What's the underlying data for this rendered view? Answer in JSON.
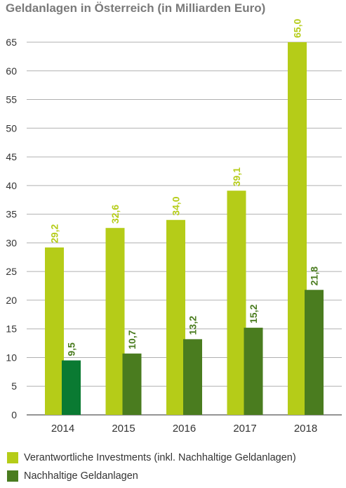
{
  "chart_data": {
    "type": "bar",
    "title": "Geldanlagen in Österreich (in Milliarden Euro)",
    "categories": [
      "2014",
      "2015",
      "2016",
      "2017",
      "2018"
    ],
    "series": [
      {
        "name": "Verantwortliche Investments (inkl. Nachhaltige Geldanlagen)",
        "values": [
          29.2,
          32.6,
          34.0,
          39.1,
          65.0
        ],
        "labels": [
          "29,2",
          "32,6",
          "34,0",
          "39,1",
          "65,0"
        ],
        "color": "#b5cc18"
      },
      {
        "name": "Nachhaltige Geldanlagen",
        "values": [
          9.5,
          10.7,
          13.2,
          15.2,
          21.8
        ],
        "labels": [
          "9,5",
          "10,7",
          "13,2",
          "15,2",
          "21,8"
        ],
        "color": "#4a7c1f",
        "highlight_color": "#0a7a32"
      }
    ],
    "y_ticks": [
      "0",
      "5",
      "10",
      "15",
      "20",
      "25",
      "30",
      "35",
      "40",
      "45",
      "50",
      "55",
      "60",
      "65"
    ],
    "ylim": [
      0,
      65
    ],
    "grid": true,
    "legend_position": "bottom"
  }
}
